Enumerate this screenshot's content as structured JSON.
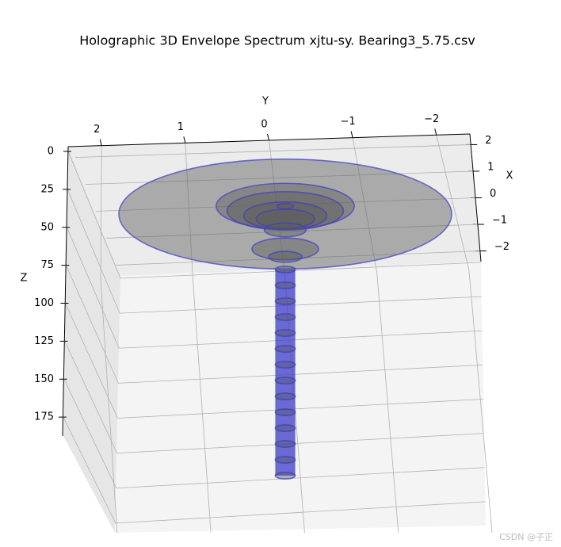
{
  "chart_data": {
    "type": "rings3d",
    "title": "Holographic 3D Envelope Spectrum  xjtu-sy. Bearing3_5.75.csv",
    "xlabel": "X",
    "ylabel": "Y",
    "zlabel": "Z",
    "xlim": [
      -2.4,
      2.4
    ],
    "xticks": [
      2,
      1,
      0,
      {
        "value": -1,
        "label": "−1"
      },
      {
        "value": -2,
        "label": "−2"
      }
    ],
    "ylim": [
      -2.4,
      2.4
    ],
    "yticks": [
      2,
      1,
      0,
      {
        "value": -1,
        "label": "−1"
      },
      {
        "value": -2,
        "label": "−2"
      }
    ],
    "zlim": [
      0,
      200
    ],
    "zticks": [
      0,
      25,
      50,
      75,
      100,
      125,
      150,
      175
    ],
    "z": [
      35,
      30,
      33,
      36,
      38,
      30,
      45,
      57,
      62,
      70,
      80,
      90,
      100,
      110,
      120,
      130,
      140,
      150,
      160,
      170,
      180,
      190,
      200
    ],
    "radius": [
      2.0,
      0.83,
      0.7,
      0.5,
      0.35,
      0.1,
      0.25,
      0.4,
      0.2,
      0.12,
      0.12,
      0.12,
      0.12,
      0.12,
      0.12,
      0.12,
      0.12,
      0.12,
      0.12,
      0.12,
      0.12,
      0.12,
      0.12
    ],
    "color": "#3c3cc8",
    "grid": true
  },
  "watermark": "CSDN @子正"
}
